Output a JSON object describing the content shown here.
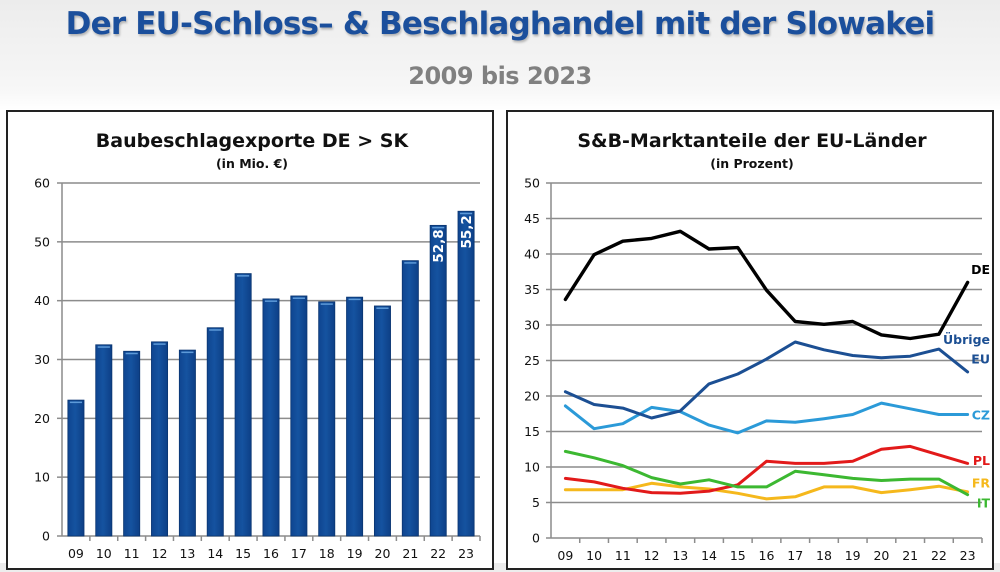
{
  "header": {
    "title": "Der EU-Schloss– & Beschlaghandel mit der Slowakei",
    "subtitle": "2009 bis 2023"
  },
  "chart_data": [
    {
      "type": "bar",
      "title": "Baubeschlagexporte DE > SK",
      "subtitle": "(in Mio. €)",
      "xlabel": "",
      "ylabel": "",
      "categories": [
        "09",
        "10",
        "11",
        "12",
        "13",
        "14",
        "15",
        "16",
        "17",
        "18",
        "19",
        "20",
        "21",
        "22",
        "23"
      ],
      "values": [
        23.1,
        32.5,
        31.4,
        33.0,
        31.6,
        35.4,
        44.6,
        40.3,
        40.8,
        39.8,
        40.6,
        39.1,
        46.8,
        52.8,
        55.2
      ],
      "data_labels": {
        "22": "52,8",
        "23": "55,2"
      },
      "ylim": [
        0,
        60
      ],
      "yticks": [
        0,
        10,
        20,
        30,
        40,
        50,
        60
      ],
      "grid": true,
      "color": "#1553a0"
    },
    {
      "type": "line",
      "title": "S&B-Marktanteile der EU-Länder",
      "subtitle": "(in Prozent)",
      "xlabel": "",
      "ylabel": "",
      "categories": [
        "09",
        "10",
        "11",
        "12",
        "13",
        "14",
        "15",
        "16",
        "17",
        "18",
        "19",
        "20",
        "21",
        "22",
        "23"
      ],
      "ylim": [
        0,
        50
      ],
      "yticks": [
        0,
        5,
        10,
        15,
        20,
        25,
        30,
        35,
        40,
        45,
        50
      ],
      "grid": true,
      "legend": "inline-right",
      "series": [
        {
          "name": "DE",
          "label": "DE",
          "color": "#000000",
          "values": [
            33.6,
            39.9,
            41.8,
            42.2,
            43.2,
            40.7,
            40.9,
            34.9,
            30.5,
            30.1,
            30.5,
            28.6,
            28.1,
            28.7,
            36.0
          ]
        },
        {
          "name": "Übrige EU",
          "label": "Übrige EU",
          "color": "#1c4f93",
          "values": [
            20.6,
            18.8,
            18.3,
            16.9,
            17.9,
            21.7,
            23.1,
            25.2,
            27.6,
            26.5,
            25.7,
            25.4,
            25.6,
            26.6,
            23.4
          ]
        },
        {
          "name": "CZ",
          "label": "CZ",
          "color": "#2b9ad8",
          "values": [
            18.6,
            15.4,
            16.1,
            18.4,
            17.8,
            15.9,
            14.8,
            16.5,
            16.3,
            16.8,
            17.4,
            19.0,
            18.2,
            17.4,
            17.4
          ]
        },
        {
          "name": "PL",
          "label": "PL",
          "color": "#e21a1a",
          "values": [
            8.4,
            7.9,
            7.0,
            6.4,
            6.3,
            6.6,
            7.5,
            10.8,
            10.5,
            10.5,
            10.8,
            12.5,
            12.9,
            11.7,
            10.5
          ]
        },
        {
          "name": "FR",
          "label": "FR",
          "color": "#f5b81c",
          "values": [
            6.8,
            6.8,
            6.8,
            7.7,
            7.2,
            6.9,
            6.3,
            5.5,
            5.8,
            7.2,
            7.2,
            6.4,
            6.8,
            7.3,
            6.5
          ]
        },
        {
          "name": "IT",
          "label": "IT",
          "color": "#3cb831",
          "values": [
            12.2,
            11.3,
            10.2,
            8.5,
            7.6,
            8.2,
            7.2,
            7.2,
            9.4,
            8.9,
            8.4,
            8.1,
            8.3,
            8.3,
            6.1
          ]
        }
      ]
    }
  ]
}
